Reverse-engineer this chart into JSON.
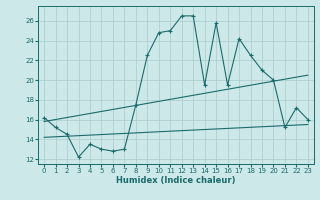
{
  "xlabel": "Humidex (Indice chaleur)",
  "xlim": [
    -0.5,
    23.5
  ],
  "ylim": [
    11.5,
    27.5
  ],
  "yticks": [
    12,
    14,
    16,
    18,
    20,
    22,
    24,
    26
  ],
  "xticks": [
    0,
    1,
    2,
    3,
    4,
    5,
    6,
    7,
    8,
    9,
    10,
    11,
    12,
    13,
    14,
    15,
    16,
    17,
    18,
    19,
    20,
    21,
    22,
    23
  ],
  "bg_color": "#cce8e8",
  "line_color": "#1a6b6b",
  "grid_color": "#aacccc",
  "main_x": [
    0,
    1,
    2,
    3,
    4,
    5,
    6,
    7,
    8,
    9,
    10,
    11,
    12,
    13,
    14,
    15,
    16,
    17,
    18,
    19,
    20,
    21,
    22,
    23
  ],
  "main_y": [
    16.2,
    15.2,
    14.5,
    12.2,
    13.5,
    13.0,
    12.8,
    13.0,
    17.5,
    22.5,
    24.8,
    25.0,
    26.5,
    26.5,
    19.5,
    25.8,
    19.5,
    24.2,
    22.5,
    21.0,
    20.0,
    15.2,
    17.2,
    16.0
  ],
  "trend1_x": [
    0,
    23
  ],
  "trend1_y": [
    14.2,
    15.5
  ],
  "trend2_x": [
    0,
    23
  ],
  "trend2_y": [
    15.8,
    20.5
  ]
}
